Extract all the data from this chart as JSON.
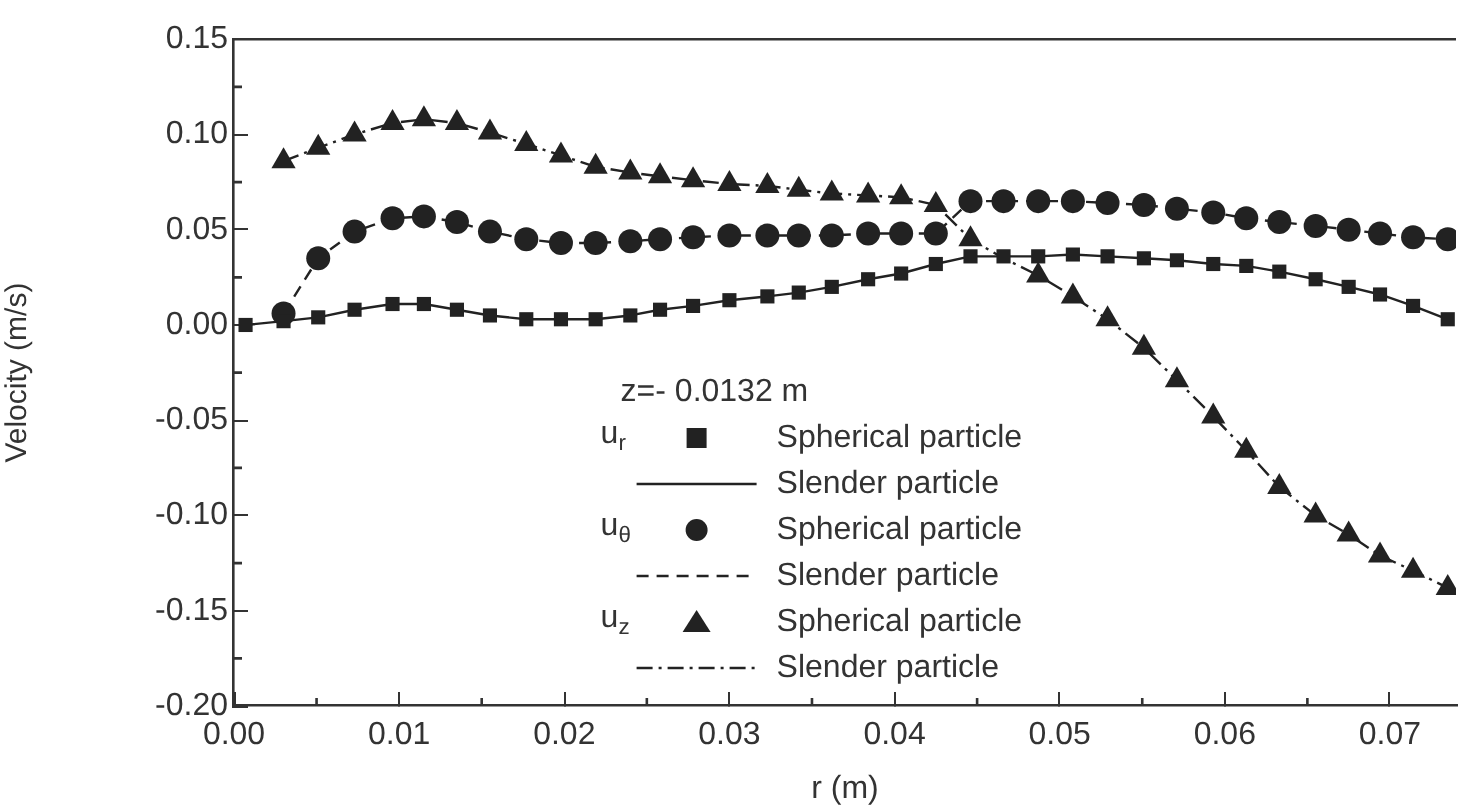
{
  "chart_data": {
    "type": "scatter",
    "xlabel": "r (m)",
    "ylabel": "Velocity (m/s)",
    "legend_title": "z=- 0.0132 m",
    "annotations": [
      "u$_{r}$",
      "u$_{θ}$",
      "u$_{z}$"
    ],
    "xlim": [
      0,
      0.074
    ],
    "ylim": [
      -0.2,
      0.15
    ],
    "xticks": [
      {
        "value": 0,
        "label": "0.00"
      },
      0.01,
      0.02,
      0.03,
      0.04,
      0.05,
      0.06,
      0.07
    ],
    "yticks": [
      {
        "value": -0.2,
        "label": "-0.20"
      },
      -0.15,
      {
        "value": -0.1,
        "label": "-0.10"
      },
      -0.05,
      {
        "value": 0,
        "label": "0.00"
      },
      0.05,
      {
        "value": 0.1,
        "label": "0.10"
      },
      0.15
    ],
    "grid": false,
    "legend": "bottom",
    "series": [
      {
        "name": "Spherical particle",
        "type": "scatter",
        "marker": "square",
        "color": "#222222",
        "x": [
          0.0007,
          0.003,
          0.0051,
          0.0073,
          0.0096,
          0.0115,
          0.0135,
          0.0155,
          0.0177,
          0.0198,
          0.0219,
          0.024,
          0.0258,
          0.0278,
          0.03,
          0.0323,
          0.0342,
          0.0362,
          0.0384,
          0.0404,
          0.0425,
          0.0446,
          0.0466,
          0.0487,
          0.0508,
          0.0529,
          0.0551,
          0.0571,
          0.0593,
          0.0613,
          0.0633,
          0.0655,
          0.0675,
          0.0694,
          0.0714,
          0.0735
        ],
        "values": [
          0.0,
          0.002,
          0.004,
          0.008,
          0.011,
          0.011,
          0.008,
          0.005,
          0.003,
          0.003,
          0.003,
          0.005,
          0.008,
          0.01,
          0.013,
          0.015,
          0.017,
          0.02,
          0.024,
          0.027,
          0.032,
          0.036,
          0.036,
          0.036,
          0.037,
          0.036,
          0.035,
          0.034,
          0.032,
          0.031,
          0.028,
          0.024,
          0.02,
          0.016,
          0.01,
          0.003
        ]
      },
      {
        "name": "Slender particle",
        "type": "line",
        "marker": "none",
        "line_style": "solid",
        "color": "#222222",
        "x": [
          0.0007,
          0.003,
          0.0051,
          0.0073,
          0.0096,
          0.0115,
          0.0135,
          0.0155,
          0.0177,
          0.0198,
          0.0219,
          0.024,
          0.0258,
          0.0278,
          0.03,
          0.0323,
          0.0342,
          0.0362,
          0.0384,
          0.0404,
          0.0425,
          0.0446,
          0.0466,
          0.0487,
          0.0508,
          0.0529,
          0.0551,
          0.0571,
          0.0593,
          0.0613,
          0.0633,
          0.0655,
          0.0675,
          0.0694,
          0.0714,
          0.0735
        ],
        "values": [
          0.0,
          0.002,
          0.004,
          0.008,
          0.011,
          0.011,
          0.008,
          0.005,
          0.003,
          0.003,
          0.003,
          0.005,
          0.008,
          0.01,
          0.013,
          0.015,
          0.017,
          0.02,
          0.024,
          0.027,
          0.032,
          0.036,
          0.036,
          0.036,
          0.037,
          0.036,
          0.035,
          0.034,
          0.032,
          0.031,
          0.028,
          0.024,
          0.02,
          0.016,
          0.01,
          0.003
        ]
      },
      {
        "name": "Spherical particle",
        "type": "scatter",
        "marker": "circle",
        "color": "#222222",
        "x": [
          0.003,
          0.0051,
          0.0073,
          0.0096,
          0.0115,
          0.0135,
          0.0155,
          0.0177,
          0.0198,
          0.0219,
          0.024,
          0.0258,
          0.0278,
          0.03,
          0.0323,
          0.0342,
          0.0362,
          0.0384,
          0.0404,
          0.0425,
          0.0446,
          0.0466,
          0.0487,
          0.0508,
          0.0529,
          0.0551,
          0.0571,
          0.0593,
          0.0613,
          0.0633,
          0.0655,
          0.0675,
          0.0694,
          0.0714,
          0.0735
        ],
        "values": [
          0.006,
          0.035,
          0.049,
          0.056,
          0.057,
          0.054,
          0.049,
          0.045,
          0.043,
          0.043,
          0.044,
          0.045,
          0.046,
          0.047,
          0.047,
          0.047,
          0.047,
          0.048,
          0.048,
          0.048,
          0.065,
          0.065,
          0.065,
          0.065,
          0.064,
          0.063,
          0.061,
          0.059,
          0.056,
          0.054,
          0.052,
          0.05,
          0.048,
          0.046,
          0.045
        ]
      },
      {
        "name": "Slender particle",
        "type": "line",
        "marker": "none",
        "line_style": "dashed",
        "color": "#222222",
        "x": [
          0.003,
          0.0051,
          0.0073,
          0.0096,
          0.0115,
          0.0135,
          0.0155,
          0.0177,
          0.0198,
          0.0219,
          0.024,
          0.0258,
          0.0278,
          0.03,
          0.0323,
          0.0342,
          0.0362,
          0.0384,
          0.0404,
          0.0425,
          0.0446,
          0.0466,
          0.0487,
          0.0508,
          0.0529,
          0.0551,
          0.0571,
          0.0593,
          0.0613,
          0.0633,
          0.0655,
          0.0675,
          0.0694,
          0.0714,
          0.0735
        ],
        "values": [
          0.006,
          0.035,
          0.049,
          0.056,
          0.057,
          0.054,
          0.049,
          0.045,
          0.043,
          0.043,
          0.044,
          0.045,
          0.046,
          0.047,
          0.047,
          0.047,
          0.047,
          0.048,
          0.048,
          0.048,
          0.065,
          0.065,
          0.065,
          0.065,
          0.064,
          0.063,
          0.061,
          0.059,
          0.056,
          0.054,
          0.052,
          0.05,
          0.048,
          0.046,
          0.045
        ]
      },
      {
        "name": "Spherical particle",
        "type": "scatter",
        "marker": "triangle",
        "color": "#222222",
        "x": [
          0.003,
          0.0051,
          0.0073,
          0.0096,
          0.0115,
          0.0135,
          0.0155,
          0.0177,
          0.0198,
          0.0219,
          0.024,
          0.0258,
          0.0278,
          0.03,
          0.0323,
          0.0342,
          0.0362,
          0.0384,
          0.0404,
          0.0425,
          0.0446,
          0.0466,
          0.0487,
          0.0508,
          0.0529,
          0.0551,
          0.0571,
          0.0593,
          0.0613,
          0.0633,
          0.0655,
          0.0675,
          0.0694,
          0.0714,
          0.0735
        ],
        "values": [
          0.086,
          0.093,
          0.1,
          0.106,
          0.108,
          0.106,
          0.101,
          0.095,
          0.089,
          0.083,
          0.08,
          0.078,
          0.076,
          0.074,
          0.073,
          0.071,
          0.069,
          0.068,
          0.067,
          0.063,
          0.045,
          null,
          0.026,
          0.015,
          0.003,
          -0.012,
          -0.029,
          -0.048,
          -0.066,
          -0.085,
          -0.1,
          -0.11,
          -0.121,
          -0.129,
          -0.138
        ]
      },
      {
        "name": "Slender particle",
        "type": "line",
        "marker": "none",
        "line_style": "dotted",
        "color": "#222222",
        "x": [
          0.003,
          0.0051,
          0.0073,
          0.0096,
          0.0115,
          0.0135,
          0.0155,
          0.0177,
          0.0198,
          0.0219,
          0.024,
          0.0258,
          0.0278,
          0.03,
          0.0323,
          0.0342,
          0.0362,
          0.0384,
          0.0404,
          0.0425,
          0.0446,
          0.0466,
          0.0487,
          0.0508,
          0.0529,
          0.0551,
          0.0571,
          0.0593,
          0.0613,
          0.0633,
          0.0655,
          0.0675,
          0.0694,
          0.0714,
          0.0735
        ],
        "values": [
          0.086,
          0.093,
          0.1,
          0.106,
          0.108,
          0.106,
          0.101,
          0.095,
          0.089,
          0.083,
          0.08,
          0.078,
          0.076,
          0.074,
          0.073,
          0.071,
          0.069,
          0.068,
          0.067,
          0.063,
          0.045,
          0.035,
          0.026,
          0.015,
          0.003,
          -0.012,
          -0.029,
          -0.048,
          -0.066,
          -0.085,
          -0.1,
          -0.11,
          -0.121,
          -0.129,
          -0.138
        ]
      }
    ]
  }
}
